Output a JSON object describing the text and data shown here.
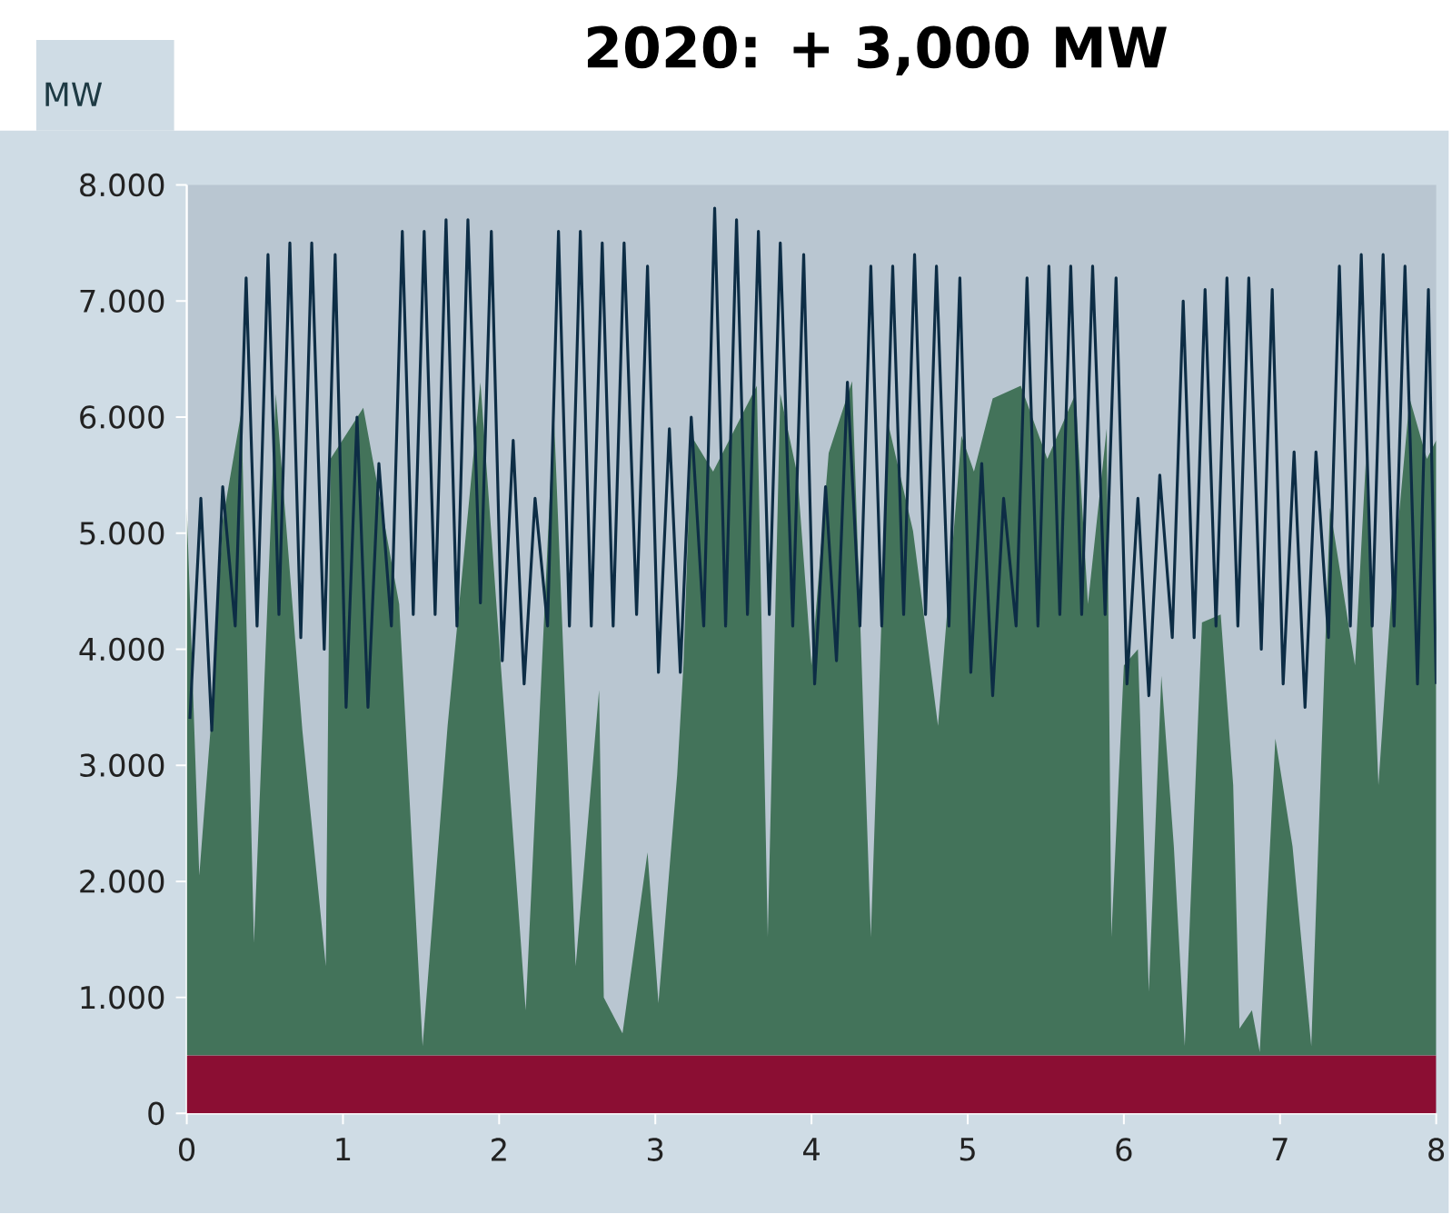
{
  "chart_data": {
    "type": "area",
    "title": "2020: + 3,000 MW",
    "ylabel": "MW",
    "stacked": true,
    "xlim": [
      0,
      8
    ],
    "ylim": [
      0,
      8000
    ],
    "xticks": [
      0,
      1,
      2,
      3,
      4,
      5,
      6,
      7,
      8
    ],
    "yticks": [
      {
        "value": 0,
        "label": "0"
      },
      {
        "value": 1000,
        "label": "1.000"
      },
      {
        "value": 2000,
        "label": "2.000"
      },
      {
        "value": 3000,
        "label": "3.000"
      },
      {
        "value": 4000,
        "label": "4.000"
      },
      {
        "value": 5000,
        "label": "5.000"
      },
      {
        "value": 6000,
        "label": "6.000"
      },
      {
        "value": 7000,
        "label": "7.000"
      },
      {
        "value": 8000,
        "label": "8.000"
      }
    ],
    "series": [
      {
        "color": "#8b0e33",
        "x": [
          0.0,
          0.08,
          0.16,
          0.23,
          0.35,
          0.43,
          0.57,
          0.74,
          0.89,
          0.92,
          1.13,
          1.36,
          1.51,
          1.67,
          1.88,
          2.17,
          2.35,
          2.49,
          2.64,
          2.67,
          2.79,
          2.95,
          3.02,
          3.14,
          3.18,
          3.23,
          3.37,
          3.65,
          3.72,
          3.8,
          3.91,
          4.0,
          4.11,
          4.26,
          4.38,
          4.49,
          4.65,
          4.81,
          4.96,
          5.04,
          5.16,
          5.34,
          5.51,
          5.69,
          5.77,
          5.89,
          5.92,
          6.0,
          6.09,
          6.16,
          6.24,
          6.32,
          6.39,
          6.5,
          6.62,
          6.7,
          6.74,
          6.82,
          6.87,
          6.97,
          7.08,
          7.2,
          7.32,
          7.48,
          7.55,
          7.63,
          7.71,
          7.83,
          7.94,
          8.0
        ],
        "values": [
          500,
          500,
          500,
          500,
          500,
          500,
          500,
          500,
          500,
          500,
          500,
          500,
          500,
          500,
          500,
          500,
          500,
          500,
          500,
          500,
          500,
          500,
          500,
          500,
          500,
          500,
          500,
          500,
          500,
          500,
          500,
          500,
          500,
          500,
          500,
          500,
          500,
          500,
          500,
          500,
          500,
          500,
          500,
          500,
          500,
          500,
          500,
          500,
          500,
          500,
          500,
          500,
          500,
          500,
          500,
          500,
          500,
          500,
          500,
          500,
          500,
          500,
          500,
          500,
          500,
          500,
          500,
          500,
          500,
          500
        ]
      },
      {
        "color": "#43735a",
        "x": [
          0.0,
          0.08,
          0.16,
          0.23,
          0.35,
          0.43,
          0.57,
          0.74,
          0.89,
          0.92,
          1.13,
          1.36,
          1.51,
          1.67,
          1.88,
          2.17,
          2.35,
          2.49,
          2.64,
          2.67,
          2.79,
          2.95,
          3.02,
          3.14,
          3.18,
          3.23,
          3.37,
          3.65,
          3.72,
          3.8,
          3.91,
          4.0,
          4.11,
          4.26,
          4.38,
          4.49,
          4.65,
          4.81,
          4.96,
          5.04,
          5.16,
          5.34,
          5.51,
          5.69,
          5.77,
          5.89,
          5.92,
          6.0,
          6.09,
          6.16,
          6.24,
          6.32,
          6.39,
          6.5,
          6.62,
          6.7,
          6.74,
          6.82,
          6.87,
          6.97,
          7.08,
          7.2,
          7.32,
          7.48,
          7.55,
          7.63,
          7.71,
          7.83,
          7.94,
          8.0
        ],
        "values": [
          4720,
          1550,
          2950,
          4610,
          5550,
          970,
          5700,
          2800,
          770,
          5140,
          5580,
          3890,
          80,
          2840,
          5800,
          390,
          5550,
          770,
          3150,
          500,
          190,
          1750,
          450,
          2420,
          3360,
          5340,
          5030,
          5770,
          1020,
          5700,
          5000,
          3360,
          5190,
          5810,
          1020,
          5450,
          4520,
          2840,
          5340,
          5030,
          5660,
          5770,
          5140,
          5700,
          3890,
          5400,
          1020,
          3360,
          3500,
          550,
          3270,
          1800,
          80,
          3730,
          3800,
          2330,
          230,
          390,
          30,
          2730,
          1800,
          80,
          4720,
          3360,
          5140,
          2330,
          3900,
          5660,
          5140,
          5300
        ]
      },
      {
        "type": "line",
        "color": "#0d2d45",
        "x": [
          0.02,
          0.09,
          0.16,
          0.23,
          0.31,
          0.38,
          0.45,
          0.52,
          0.59,
          0.66,
          0.73,
          0.8,
          0.88,
          0.95,
          1.02,
          1.09,
          1.16,
          1.23,
          1.31,
          1.38,
          1.45,
          1.52,
          1.59,
          1.66,
          1.73,
          1.8,
          1.88,
          1.95,
          2.02,
          2.09,
          2.16,
          2.23,
          2.31,
          2.38,
          2.45,
          2.52,
          2.59,
          2.66,
          2.73,
          2.8,
          2.88,
          2.95,
          3.02,
          3.09,
          3.16,
          3.23,
          3.31,
          3.38,
          3.45,
          3.52,
          3.59,
          3.66,
          3.73,
          3.8,
          3.88,
          3.95,
          4.02,
          4.09,
          4.16,
          4.23,
          4.31,
          4.38,
          4.45,
          4.52,
          4.59,
          4.66,
          4.73,
          4.8,
          4.88,
          4.95,
          5.02,
          5.09,
          5.16,
          5.23,
          5.31,
          5.38,
          5.45,
          5.52,
          5.59,
          5.66,
          5.73,
          5.8,
          5.88,
          5.95,
          6.02,
          6.09,
          6.16,
          6.23,
          6.31,
          6.38,
          6.45,
          6.52,
          6.59,
          6.66,
          6.73,
          6.8,
          6.88,
          6.95,
          7.02,
          7.09,
          7.16,
          7.23,
          7.31,
          7.38,
          7.45,
          7.52,
          7.59,
          7.66,
          7.73,
          7.8,
          7.88,
          7.95,
          8.0
        ],
        "values": [
          3400,
          5300,
          3300,
          5400,
          4200,
          7200,
          4200,
          7400,
          4300,
          7500,
          4100,
          7500,
          4000,
          7400,
          3500,
          6000,
          3500,
          5600,
          4200,
          7600,
          4300,
          7600,
          4300,
          7700,
          4200,
          7700,
          4400,
          7600,
          3900,
          5800,
          3700,
          5300,
          4200,
          7600,
          4200,
          7600,
          4200,
          7500,
          4200,
          7500,
          4300,
          7300,
          3800,
          5900,
          3800,
          6000,
          4200,
          7800,
          4200,
          7700,
          4300,
          7600,
          4300,
          7500,
          4200,
          7400,
          3700,
          5400,
          3900,
          6300,
          4200,
          7300,
          4200,
          7300,
          4300,
          7400,
          4300,
          7300,
          4200,
          7200,
          3800,
          5600,
          3600,
          5300,
          4200,
          7200,
          4200,
          7300,
          4300,
          7300,
          4300,
          7300,
          4300,
          7200,
          3700,
          5300,
          3600,
          5500,
          4100,
          7000,
          4100,
          7100,
          4200,
          7200,
          4200,
          7200,
          4000,
          7100,
          3700,
          5700,
          3500,
          5700,
          4100,
          7300,
          4200,
          7400,
          4200,
          7400,
          4200,
          7300,
          3700,
          7100,
          3700
        ]
      }
    ]
  }
}
